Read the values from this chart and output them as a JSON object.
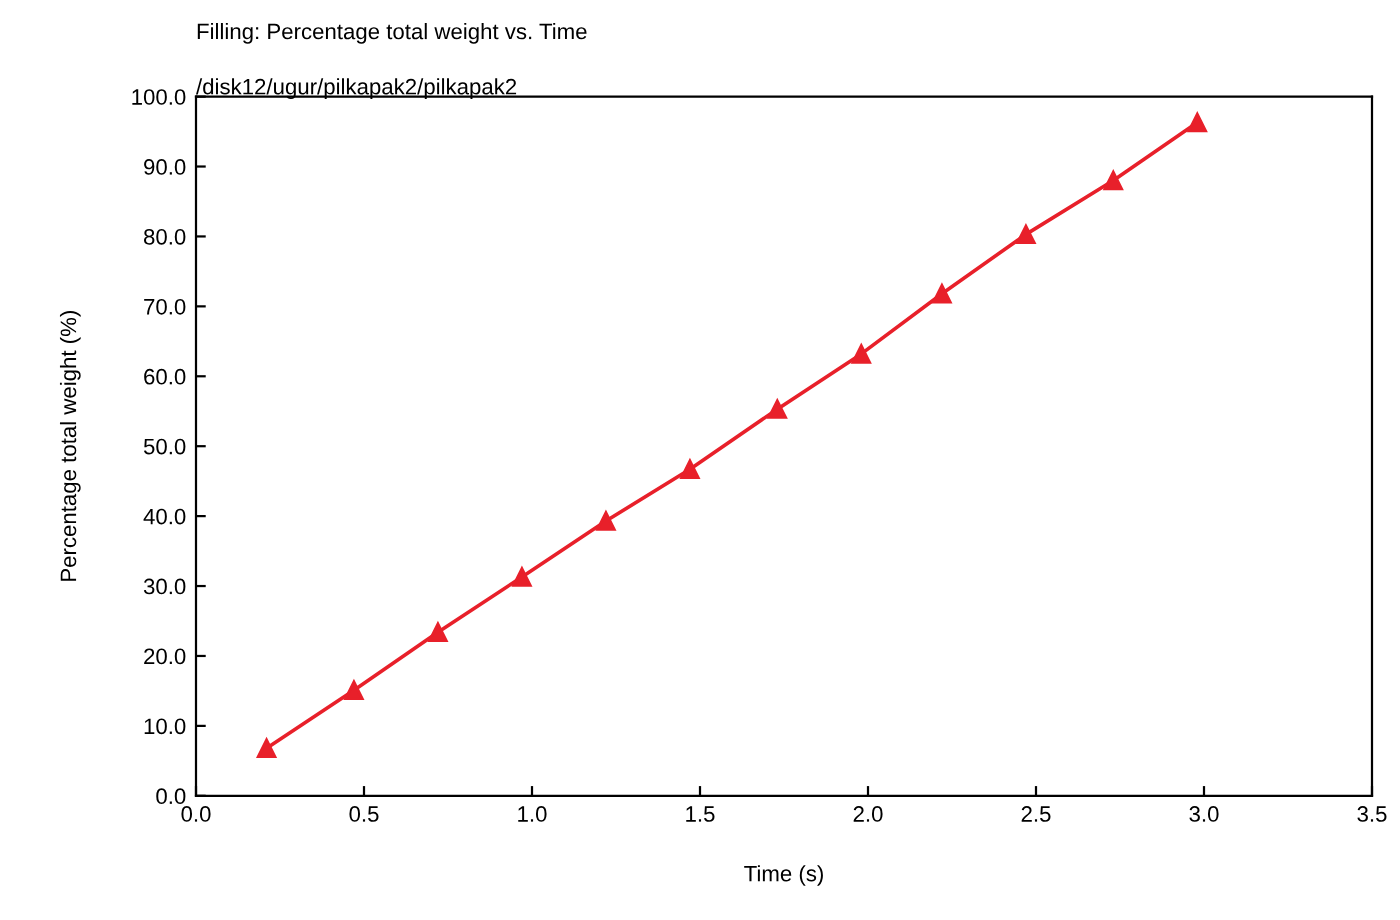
{
  "chart_data": {
    "type": "line",
    "title": "Filling: Percentage total weight vs. Time",
    "subtitle": "/disk12/ugur/pilkapak2/pilkapak2",
    "xlabel": "Time (s)",
    "ylabel": "Percentage total weight (%)",
    "x": [
      0.21,
      0.47,
      0.72,
      0.97,
      1.22,
      1.47,
      1.73,
      1.98,
      2.22,
      2.47,
      2.73,
      2.98
    ],
    "series": [
      {
        "color": "#e8202a",
        "values": [
          6.8,
          15.1,
          23.4,
          31.3,
          39.3,
          46.7,
          55.3,
          63.2,
          71.8,
          80.3,
          88.0,
          96.3
        ]
      }
    ],
    "marker": "triangle",
    "line_style": "solid",
    "grid": false,
    "legend": false,
    "xlim": [
      0,
      3.5
    ],
    "ylim": [
      0,
      100
    ],
    "xticks": [
      {
        "value": 0,
        "label": "0.0"
      },
      {
        "value": 0.5,
        "label": "0.5"
      },
      {
        "value": 1,
        "label": "1.0"
      },
      {
        "value": 1.5,
        "label": "1.5"
      },
      {
        "value": 2,
        "label": "2.0"
      },
      {
        "value": 2.5,
        "label": "2.5"
      },
      {
        "value": 3,
        "label": "3.0"
      },
      {
        "value": 3.5,
        "label": "3.5"
      }
    ],
    "yticks": [
      {
        "value": 0,
        "label": "0.0"
      },
      {
        "value": 10,
        "label": "10.0"
      },
      {
        "value": 20,
        "label": "20.0"
      },
      {
        "value": 30,
        "label": "30.0"
      },
      {
        "value": 40,
        "label": "40.0"
      },
      {
        "value": 50,
        "label": "50.0"
      },
      {
        "value": 60,
        "label": "60.0"
      },
      {
        "value": 70,
        "label": "70.0"
      },
      {
        "value": 80,
        "label": "80.0"
      },
      {
        "value": 90,
        "label": "90.0"
      },
      {
        "value": 100,
        "label": "100.0"
      }
    ]
  }
}
